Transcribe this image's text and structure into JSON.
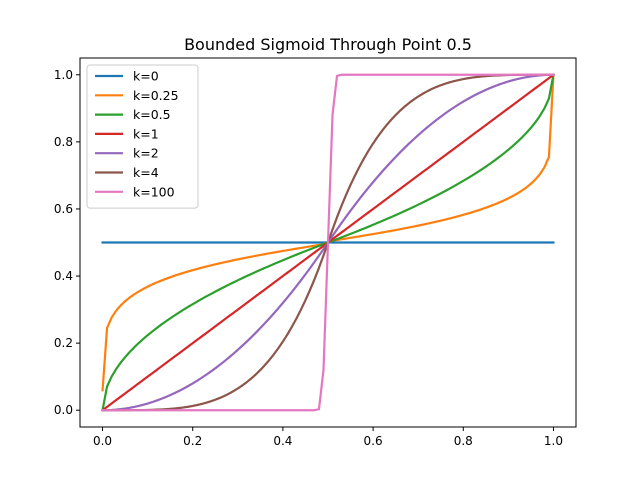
{
  "chart_data": {
    "type": "line",
    "title": "Bounded Sigmoid Through Point 0.5",
    "xlabel": "",
    "ylabel": "",
    "xlim": [
      -0.05,
      1.05
    ],
    "ylim": [
      -0.05,
      1.05
    ],
    "xticks": [
      0.0,
      0.2,
      0.4,
      0.6,
      0.8,
      1.0
    ],
    "xtick_labels": [
      "0.0",
      "0.2",
      "0.4",
      "0.6",
      "0.8",
      "1.0"
    ],
    "yticks": [
      0.0,
      0.2,
      0.4,
      0.6,
      0.8,
      1.0
    ],
    "ytick_labels": [
      "0.0",
      "0.2",
      "0.4",
      "0.6",
      "0.8",
      "1.0"
    ],
    "grid": false,
    "legend_position": "top-left",
    "x": [
      0,
      0.01,
      0.02,
      0.03,
      0.04,
      0.05,
      0.06,
      0.07,
      0.08,
      0.09,
      0.1,
      0.11,
      0.12,
      0.13,
      0.14,
      0.15,
      0.16,
      0.17,
      0.18,
      0.19,
      0.2,
      0.21,
      0.22,
      0.23,
      0.24,
      0.25,
      0.26,
      0.27,
      0.28,
      0.29,
      0.3,
      0.31,
      0.32,
      0.33,
      0.34,
      0.35,
      0.36,
      0.37,
      0.38,
      0.39,
      0.4,
      0.41,
      0.42,
      0.43,
      0.44,
      0.45,
      0.46,
      0.47,
      0.48,
      0.49,
      0.5,
      0.51,
      0.52,
      0.53,
      0.54,
      0.55,
      0.56,
      0.57,
      0.58,
      0.59,
      0.6,
      0.61,
      0.62,
      0.63,
      0.64,
      0.65,
      0.66,
      0.67,
      0.68,
      0.69,
      0.7,
      0.71,
      0.72,
      0.73,
      0.74,
      0.75,
      0.76,
      0.77,
      0.78,
      0.79,
      0.8,
      0.81,
      0.82,
      0.83,
      0.84,
      0.85,
      0.86,
      0.87,
      0.88,
      0.89,
      0.9,
      0.91,
      0.92,
      0.93,
      0.94,
      0.95,
      0.96,
      0.97,
      0.98,
      0.99,
      1
    ],
    "series": [
      {
        "name": "k=0",
        "color": "#1f77b4",
        "values": [
          0.5,
          0.5,
          0.5,
          0.5,
          0.5,
          0.5,
          0.5,
          0.5,
          0.5,
          0.5,
          0.5,
          0.5,
          0.5,
          0.5,
          0.5,
          0.5,
          0.5,
          0.5,
          0.5,
          0.5,
          0.5,
          0.5,
          0.5,
          0.5,
          0.5,
          0.5,
          0.5,
          0.5,
          0.5,
          0.5,
          0.5,
          0.5,
          0.5,
          0.5,
          0.5,
          0.5,
          0.5,
          0.5,
          0.5,
          0.5,
          0.5,
          0.5,
          0.5,
          0.5,
          0.5,
          0.5,
          0.5,
          0.5,
          0.5,
          0.5,
          0.5,
          0.5,
          0.5,
          0.5,
          0.5,
          0.5,
          0.5,
          0.5,
          0.5,
          0.5,
          0.5,
          0.5,
          0.5,
          0.5,
          0.5,
          0.5,
          0.5,
          0.5,
          0.5,
          0.5,
          0.5,
          0.5,
          0.5,
          0.5,
          0.5,
          0.5,
          0.5,
          0.5,
          0.5,
          0.5,
          0.5,
          0.5,
          0.5,
          0.5,
          0.5,
          0.5,
          0.5,
          0.5,
          0.5,
          0.5,
          0.5,
          0.5,
          0.5,
          0.5,
          0.5,
          0.5,
          0.5,
          0.5,
          0.5,
          0.5,
          0.5
        ]
      },
      {
        "name": "k=0.25",
        "color": "#ff7f0e",
        "values": [
          0.0595,
          0.2449,
          0.2759,
          0.2964,
          0.3121,
          0.3249,
          0.3358,
          0.3453,
          0.3537,
          0.3613,
          0.3683,
          0.3747,
          0.3806,
          0.3862,
          0.3914,
          0.3963,
          0.401,
          0.4054,
          0.4096,
          0.4137,
          0.4175,
          0.4212,
          0.4248,
          0.4283,
          0.4316,
          0.4349,
          0.438,
          0.441,
          0.444,
          0.4469,
          0.4497,
          0.4524,
          0.4551,
          0.4578,
          0.4603,
          0.4629,
          0.4653,
          0.4678,
          0.4702,
          0.4725,
          0.4749,
          0.4772,
          0.4794,
          0.4817,
          0.4839,
          0.4861,
          0.4882,
          0.4904,
          0.4925,
          0.4946,
          0.5,
          0.5054,
          0.5075,
          0.5096,
          0.5118,
          0.5139,
          0.5161,
          0.5183,
          0.5206,
          0.5228,
          0.5251,
          0.5275,
          0.5298,
          0.5322,
          0.5347,
          0.5371,
          0.5397,
          0.5422,
          0.5449,
          0.5476,
          0.5503,
          0.5531,
          0.556,
          0.559,
          0.562,
          0.5651,
          0.5684,
          0.5717,
          0.5752,
          0.5788,
          0.5825,
          0.5863,
          0.5904,
          0.5946,
          0.599,
          0.6037,
          0.6086,
          0.6138,
          0.6194,
          0.6253,
          0.6317,
          0.6387,
          0.6463,
          0.6547,
          0.6642,
          0.6751,
          0.6879,
          0.7036,
          0.7241,
          0.7551,
          1.0
        ]
      },
      {
        "name": "k=0.5",
        "color": "#2ca02c",
        "values": [
          0.0,
          0.0707,
          0.1,
          0.1225,
          0.1414,
          0.1581,
          0.1732,
          0.1871,
          0.2,
          0.2121,
          0.2236,
          0.2345,
          0.2449,
          0.255,
          0.2646,
          0.2739,
          0.2828,
          0.2915,
          0.3,
          0.3082,
          0.3162,
          0.324,
          0.3317,
          0.3391,
          0.3464,
          0.3536,
          0.3606,
          0.3674,
          0.3742,
          0.3808,
          0.3873,
          0.3937,
          0.4,
          0.4062,
          0.4123,
          0.4183,
          0.4243,
          0.4301,
          0.4359,
          0.4416,
          0.4472,
          0.4528,
          0.4583,
          0.4637,
          0.469,
          0.4743,
          0.4796,
          0.4848,
          0.4899,
          0.495,
          0.5,
          0.505,
          0.5101,
          0.5152,
          0.5204,
          0.5257,
          0.531,
          0.5363,
          0.5417,
          0.5472,
          0.5528,
          0.5584,
          0.5641,
          0.5699,
          0.5757,
          0.5817,
          0.5877,
          0.5938,
          0.6,
          0.6063,
          0.6127,
          0.6192,
          0.6258,
          0.6326,
          0.6394,
          0.6464,
          0.6536,
          0.6609,
          0.6683,
          0.676,
          0.6838,
          0.6918,
          0.7,
          0.7085,
          0.7172,
          0.7261,
          0.7354,
          0.745,
          0.7551,
          0.7655,
          0.7764,
          0.7879,
          0.8,
          0.8129,
          0.8268,
          0.8419,
          0.8586,
          0.8775,
          0.9,
          0.9293,
          1.0
        ]
      },
      {
        "name": "k=1",
        "color": "#d62728",
        "values": [
          0.0,
          0.01,
          0.02,
          0.03,
          0.04,
          0.05,
          0.06,
          0.07,
          0.08,
          0.09,
          0.1,
          0.11,
          0.12,
          0.13,
          0.14,
          0.15,
          0.16,
          0.17,
          0.18,
          0.19,
          0.2,
          0.21,
          0.22,
          0.23,
          0.24,
          0.25,
          0.26,
          0.27,
          0.28,
          0.29,
          0.3,
          0.31,
          0.32,
          0.33,
          0.34,
          0.35,
          0.36,
          0.37,
          0.38,
          0.39,
          0.4,
          0.41,
          0.42,
          0.43,
          0.44,
          0.45,
          0.46,
          0.47,
          0.48,
          0.49,
          0.5,
          0.51,
          0.52,
          0.53,
          0.54,
          0.55,
          0.56,
          0.57,
          0.58,
          0.59,
          0.6,
          0.61,
          0.62,
          0.63,
          0.64,
          0.65,
          0.66,
          0.67,
          0.68,
          0.69,
          0.7,
          0.71,
          0.72,
          0.73,
          0.74,
          0.75,
          0.76,
          0.77,
          0.78,
          0.79,
          0.8,
          0.81,
          0.82,
          0.83,
          0.84,
          0.85,
          0.86,
          0.87,
          0.88,
          0.89,
          0.9,
          0.91,
          0.92,
          0.93,
          0.94,
          0.95,
          0.96,
          0.97,
          0.98,
          0.99,
          1.0
        ]
      },
      {
        "name": "k=2",
        "color": "#9467bd",
        "values": [
          0.0,
          0.0002,
          0.0008,
          0.0018,
          0.0032,
          0.005,
          0.0072,
          0.0098,
          0.0128,
          0.0162,
          0.02,
          0.0242,
          0.0288,
          0.0338,
          0.0392,
          0.045,
          0.0512,
          0.0578,
          0.0648,
          0.0722,
          0.08,
          0.0882,
          0.0968,
          0.1058,
          0.1152,
          0.125,
          0.1352,
          0.1458,
          0.1568,
          0.1682,
          0.18,
          0.1922,
          0.2048,
          0.2178,
          0.2312,
          0.245,
          0.2592,
          0.2738,
          0.2888,
          0.3042,
          0.32,
          0.3362,
          0.3528,
          0.3698,
          0.3872,
          0.405,
          0.4232,
          0.4418,
          0.4608,
          0.4802,
          0.5,
          0.5198,
          0.5392,
          0.5582,
          0.5768,
          0.595,
          0.6128,
          0.6302,
          0.6472,
          0.6638,
          0.68,
          0.6958,
          0.7112,
          0.7262,
          0.7408,
          0.755,
          0.7688,
          0.7822,
          0.7952,
          0.8078,
          0.82,
          0.8318,
          0.8432,
          0.8542,
          0.8648,
          0.875,
          0.8848,
          0.8942,
          0.9032,
          0.9118,
          0.92,
          0.9278,
          0.9352,
          0.9422,
          0.9488,
          0.955,
          0.9608,
          0.9662,
          0.9712,
          0.9758,
          0.98,
          0.9838,
          0.9872,
          0.9902,
          0.9928,
          0.995,
          0.9968,
          0.9982,
          0.9992,
          0.9998,
          1.0
        ]
      },
      {
        "name": "k=4",
        "color": "#8c564b",
        "values": [
          0.0,
          0.0,
          0.0,
          0.0,
          0.0,
          0.0,
          0.0001,
          0.0002,
          0.0003,
          0.0005,
          0.0008,
          0.0012,
          0.0017,
          0.0023,
          0.0031,
          0.0041,
          0.0052,
          0.0067,
          0.0084,
          0.0104,
          0.0128,
          0.0156,
          0.0187,
          0.0224,
          0.0265,
          0.0312,
          0.0366,
          0.0425,
          0.0492,
          0.0566,
          0.0648,
          0.0739,
          0.0839,
          0.0949,
          0.1069,
          0.12,
          0.1344,
          0.1499,
          0.1668,
          0.1851,
          0.2048,
          0.226,
          0.249,
          0.2735,
          0.2998,
          0.328,
          0.3582,
          0.3904,
          0.4246,
          0.4612,
          0.5,
          0.5388,
          0.5754,
          0.6096,
          0.6418,
          0.672,
          0.7002,
          0.7265,
          0.751,
          0.774,
          0.7952,
          0.8149,
          0.8332,
          0.8501,
          0.8656,
          0.88,
          0.8931,
          0.9051,
          0.9161,
          0.9261,
          0.9352,
          0.9434,
          0.9508,
          0.9575,
          0.9634,
          0.9688,
          0.9735,
          0.9776,
          0.9813,
          0.9844,
          0.9872,
          0.9896,
          0.9916,
          0.9933,
          0.9948,
          0.9959,
          0.9969,
          0.9977,
          0.9983,
          0.9988,
          0.9992,
          0.9995,
          0.9997,
          0.9998,
          0.9999,
          1.0,
          1.0,
          1.0,
          1.0,
          1.0,
          1.0
        ]
      },
      {
        "name": "k=100",
        "color": "#e377c2",
        "values": [
          0,
          0,
          0,
          0,
          0,
          0,
          0,
          0,
          0,
          0,
          0,
          0,
          0,
          0,
          0,
          0,
          0,
          0,
          0,
          0,
          0,
          0,
          0,
          0,
          0,
          0,
          0,
          0,
          0,
          0,
          0,
          0,
          0,
          0,
          0,
          0,
          0,
          0,
          0,
          0,
          0,
          0,
          0,
          0,
          0,
          0,
          0,
          0,
          0.003,
          0.12,
          0.5,
          0.88,
          0.997,
          1,
          1,
          1,
          1,
          1,
          1,
          1,
          1,
          1,
          1,
          1,
          1,
          1,
          1,
          1,
          1,
          1,
          1,
          1,
          1,
          1,
          1,
          1,
          1,
          1,
          1,
          1,
          1,
          1,
          1,
          1,
          1,
          1,
          1,
          1,
          1,
          1,
          1,
          1,
          1,
          1,
          1,
          1,
          1,
          1,
          1,
          1,
          1
        ]
      }
    ]
  }
}
